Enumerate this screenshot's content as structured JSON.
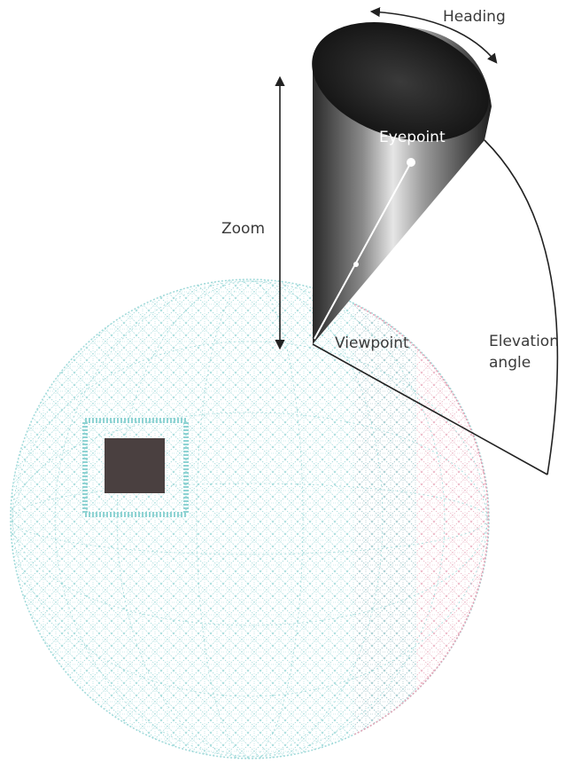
{
  "labels": {
    "heading": "Heading",
    "eyepoint": "Eyepoint",
    "zoom": "Zoom",
    "viewpoint": "Viewpoint",
    "elevation_line1": "Elevation",
    "elevation_line2": "angle"
  },
  "colors": {
    "globe_mesh_primary": "#8fd3d3",
    "globe_mesh_secondary": "#e7a3b6",
    "cone_dark": "#1a1a1a",
    "cone_light": "#d9d9d9",
    "patch_dark": "#4a4040",
    "line": "#222222"
  }
}
